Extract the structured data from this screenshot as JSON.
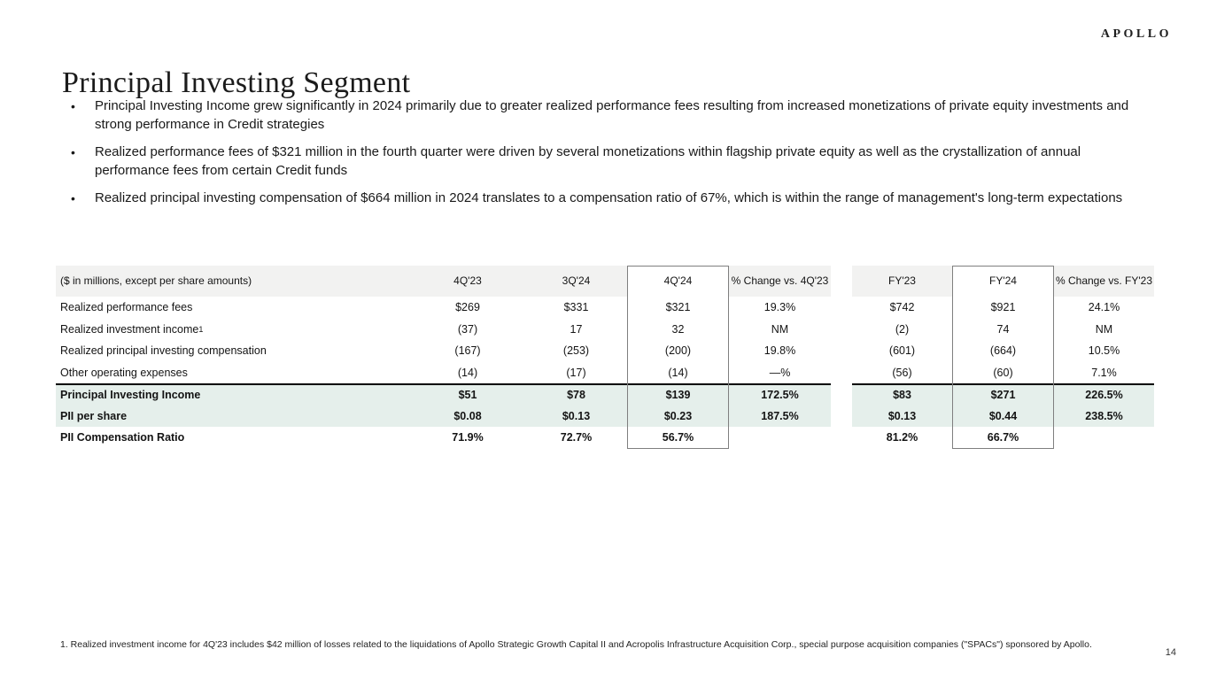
{
  "logo": "APOLLO",
  "page": {
    "title": "Principal Investing Segment",
    "number": "14"
  },
  "bullets": [
    "Principal Investing Income grew significantly in 2024 primarily due to greater realized performance fees resulting from increased monetizations of private equity investments and strong performance in Credit strategies",
    "Realized performance fees of $321 million in the fourth quarter were driven by several monetizations within flagship private equity as well as the crystallization of annual performance fees from certain Credit funds",
    "Realized principal investing compensation of $664 million in 2024 translates to a compensation ratio of 67%, which is within the range of management's long-term expectations"
  ],
  "table": {
    "header": {
      "label": "($ in millions, except per share amounts)",
      "cols": [
        "4Q'23",
        "3Q'24",
        "4Q'24",
        "% Change vs. 4Q'23",
        "FY'23",
        "FY'24",
        "% Change vs. FY'23"
      ]
    },
    "rows": [
      {
        "label": "Realized performance fees",
        "sup": "",
        "style": "normal",
        "values": [
          "$269",
          "$331",
          "$321",
          "19.3%",
          "$742",
          "$921",
          "24.1%"
        ]
      },
      {
        "label": "Realized investment income",
        "sup": "1",
        "style": "normal",
        "values": [
          "(37)",
          "17",
          "32",
          "NM",
          "(2)",
          "74",
          "NM"
        ]
      },
      {
        "label": "Realized principal investing compensation",
        "sup": "",
        "style": "normal",
        "values": [
          "(167)",
          "(253)",
          "(200)",
          "19.8%",
          "(601)",
          "(664)",
          "10.5%"
        ]
      },
      {
        "label": "Other operating expenses",
        "sup": "",
        "style": "normal",
        "values": [
          "(14)",
          "(17)",
          "(14)",
          "—%",
          "(56)",
          "(60)",
          "7.1%"
        ]
      },
      {
        "label": "Principal Investing Income",
        "sup": "",
        "style": "highlight",
        "values": [
          "$51",
          "$78",
          "$139",
          "172.5%",
          "$83",
          "$271",
          "226.5%"
        ]
      },
      {
        "label": "PII per share",
        "sup": "",
        "style": "highlight",
        "values": [
          "$0.08",
          "$0.13",
          "$0.23",
          "187.5%",
          "$0.13",
          "$0.44",
          "238.5%"
        ]
      },
      {
        "label": "PII Compensation Ratio",
        "sup": "",
        "style": "bold",
        "values": [
          "71.9%",
          "72.7%",
          "56.7%",
          "",
          "81.2%",
          "66.7%",
          ""
        ]
      }
    ]
  },
  "footnote": "1. Realized investment income for 4Q'23 includes $42 million of losses related to the liquidations of Apollo Strategic Growth Capital II and Acropolis Infrastructure Acquisition Corp., special purpose acquisition companies (\"SPACs\") sponsored by Apollo.",
  "colors": {
    "highlight": "#e5efeb",
    "header_bg": "#f2f2f1",
    "box_border": "#7f7f7f",
    "rule": "#000000"
  }
}
